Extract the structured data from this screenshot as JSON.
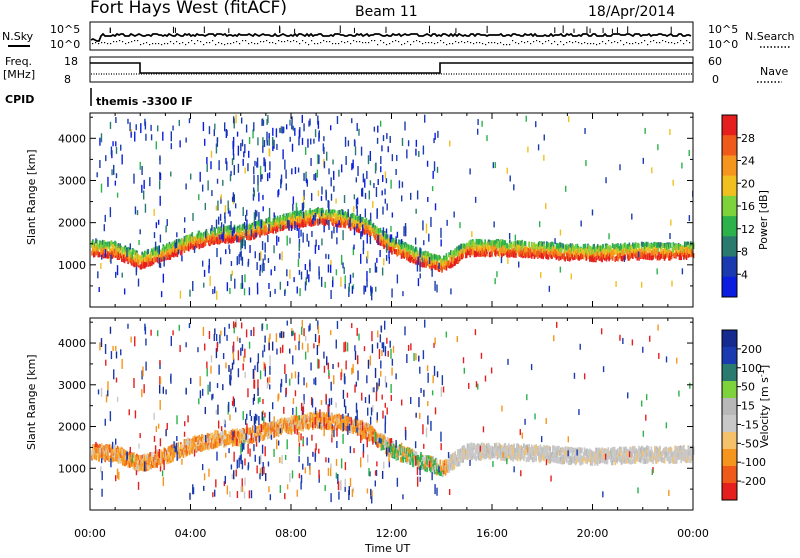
{
  "header": {
    "station": "Fort Hays West (fitACF)",
    "beam": "Beam 11",
    "date": "18/Apr/2014"
  },
  "noise_panel": {
    "left_label": "N.Sky",
    "left_ticks": [
      "10^5",
      "10^0"
    ],
    "right_ticks": [
      "10^5",
      "10^0"
    ],
    "right_label": "N.Search"
  },
  "freq_panel": {
    "left_label_top": "Freq.",
    "left_label_units": "[MHz]",
    "left_ticks": [
      "18",
      "8"
    ],
    "right_ticks": [
      "60",
      "0"
    ],
    "right_label": "Nave"
  },
  "cpid_panel": {
    "label": "CPID",
    "value": "themis -3300 IF"
  },
  "colors": {
    "power": [
      "#0b1ee0",
      "#1a3bb0",
      "#2a7a70",
      "#2bb24a",
      "#7ed23c",
      "#f0c020",
      "#f5951d",
      "#ef5a1a",
      "#e51e1e"
    ],
    "velocity": [
      "#e51e1e",
      "#ef5a1a",
      "#f5951d",
      "#f5c26b",
      "#c8c8c8",
      "#b8b8b8",
      "#7ed23c",
      "#2a7a70",
      "#1a3bb0",
      "#162b8f"
    ]
  },
  "chart_data": [
    {
      "type": "heatmap",
      "title": "",
      "xlabel": "",
      "ylabel": "Slant Range [km]",
      "y_ticks": [
        "1000",
        "2000",
        "3000",
        "4000"
      ],
      "ylim": [
        0,
        4600
      ],
      "x_ticks": [
        "00:00",
        "04:00",
        "08:00",
        "12:00",
        "16:00",
        "20:00",
        "00:00"
      ],
      "colorbar": {
        "label": "Power [dB]",
        "ticks": [
          "4",
          "8",
          "12",
          "16",
          "20",
          "24",
          "28"
        ],
        "range": [
          0,
          32
        ]
      },
      "main_band_profile": {
        "hours": [
          0,
          1,
          2,
          3,
          4,
          5,
          6,
          7,
          8,
          9,
          10,
          11,
          12,
          13,
          14,
          15,
          16,
          17,
          18,
          19,
          20,
          21,
          22,
          23,
          24
        ],
        "range_km": [
          1400,
          1350,
          1100,
          1300,
          1550,
          1700,
          1750,
          1900,
          2050,
          2150,
          2100,
          1900,
          1450,
          1200,
          1000,
          1400,
          1400,
          1380,
          1350,
          1300,
          1280,
          1300,
          1330,
          1320,
          1350
        ]
      }
    },
    {
      "type": "heatmap",
      "title": "",
      "xlabel": "Time UT",
      "ylabel": "Slant Range [km]",
      "y_ticks": [
        "1000",
        "2000",
        "3000",
        "4000"
      ],
      "ylim": [
        0,
        4600
      ],
      "x_ticks": [
        "00:00",
        "04:00",
        "08:00",
        "12:00",
        "16:00",
        "20:00",
        "00:00"
      ],
      "colorbar": {
        "label": "Velocity [m s",
        "label_sup": "-1",
        "label_end": "]",
        "ticks": [
          "200",
          "100",
          "50",
          "15",
          "-15",
          "-50",
          "-100",
          "-200"
        ],
        "range": [
          -250,
          250
        ]
      },
      "main_band_profile": {
        "hours": [
          0,
          1,
          2,
          3,
          4,
          5,
          6,
          7,
          8,
          9,
          10,
          11,
          12,
          13,
          14,
          15,
          16,
          17,
          18,
          19,
          20,
          21,
          22,
          23,
          24
        ],
        "range_km": [
          1400,
          1350,
          1100,
          1300,
          1550,
          1700,
          1750,
          1900,
          2050,
          2150,
          2100,
          1900,
          1450,
          1200,
          1000,
          1400,
          1400,
          1380,
          1350,
          1300,
          1280,
          1300,
          1330,
          1320,
          1350
        ]
      }
    }
  ]
}
